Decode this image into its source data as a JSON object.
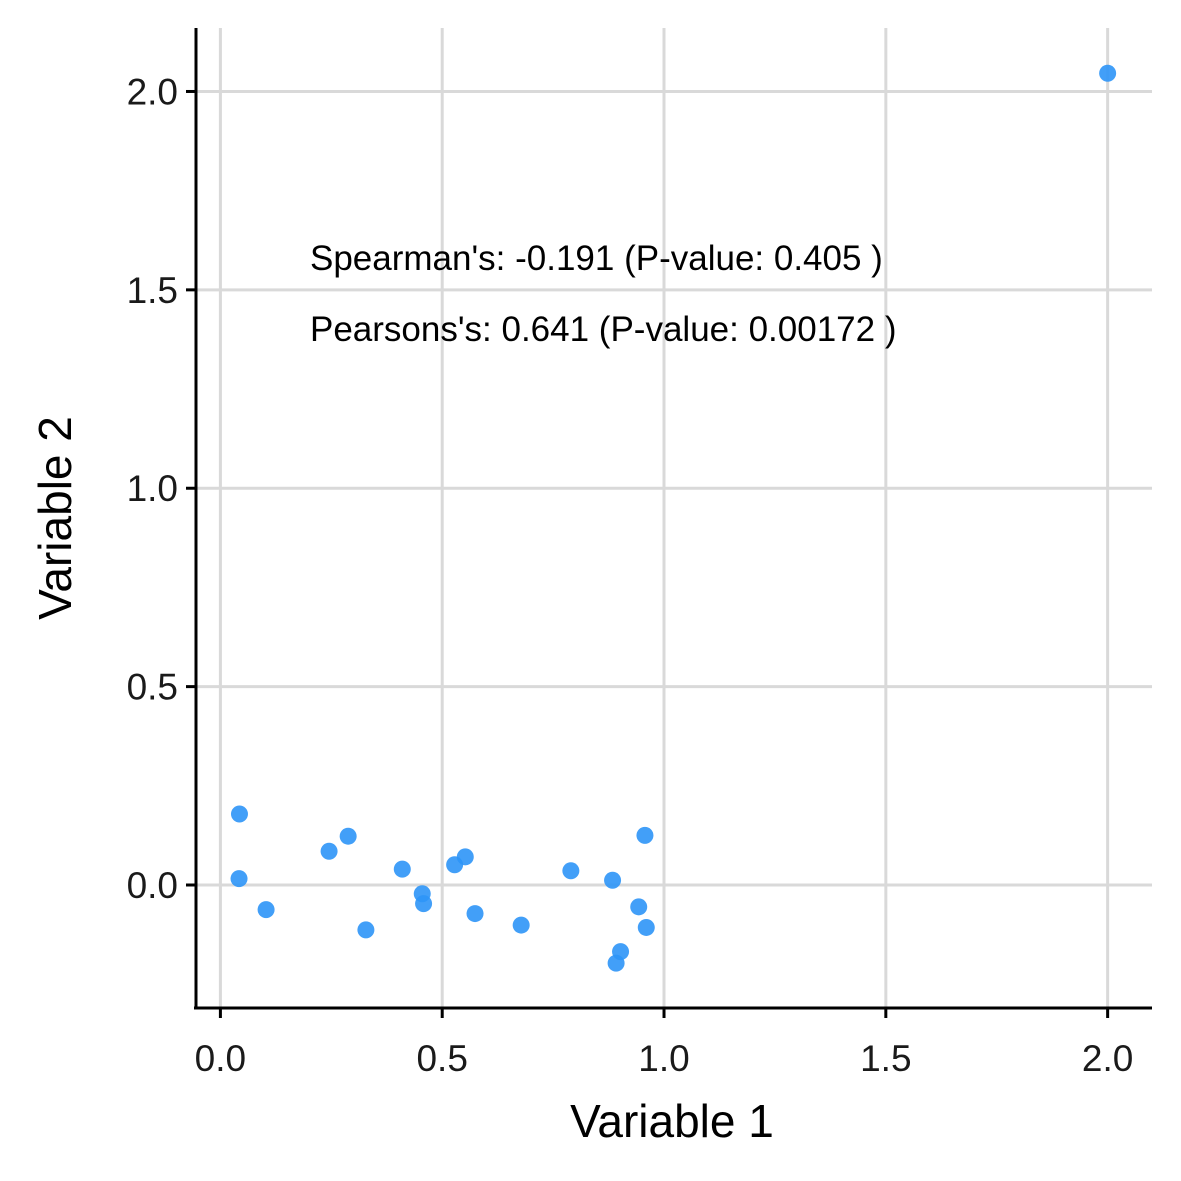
{
  "chart_data": {
    "type": "scatter",
    "title": "",
    "xlabel": "Variable 1",
    "ylabel": "Variable 2",
    "xlim": [
      -0.055,
      2.1
    ],
    "ylim": [
      -0.31,
      2.16
    ],
    "xticks": [
      0.0,
      0.5,
      1.0,
      1.5,
      2.0
    ],
    "xtick_labels": [
      "0.0",
      "0.5",
      "1.0",
      "1.5",
      "2.0"
    ],
    "yticks": [
      0.0,
      0.5,
      1.0,
      1.5,
      2.0
    ],
    "ytick_labels": [
      "0.0",
      "0.5",
      "1.0",
      "1.5",
      "2.0"
    ],
    "grid": true,
    "legend": "none",
    "point_color": "#2e95f7",
    "annotations": [
      {
        "text": "Spearman's:  -0.191  (P-value:  0.405 )",
        "x": 0.2,
        "y": 1.54
      },
      {
        "text": "Pearsons's:  0.641  (P-value:  0.00172 )",
        "x": 0.2,
        "y": 1.35
      }
    ],
    "x": [
      0.043,
      0.042,
      0.103,
      0.245,
      0.288,
      0.328,
      0.41,
      0.455,
      0.458,
      0.528,
      0.552,
      0.574,
      0.678,
      0.79,
      0.884,
      0.892,
      0.902,
      0.943,
      0.957,
      0.96,
      2.0
    ],
    "y": [
      0.179,
      0.016,
      -0.062,
      0.085,
      0.123,
      -0.113,
      0.04,
      -0.022,
      -0.047,
      0.051,
      0.071,
      -0.072,
      -0.101,
      0.036,
      0.012,
      -0.197,
      -0.168,
      -0.055,
      0.125,
      -0.107,
      2.046
    ]
  }
}
